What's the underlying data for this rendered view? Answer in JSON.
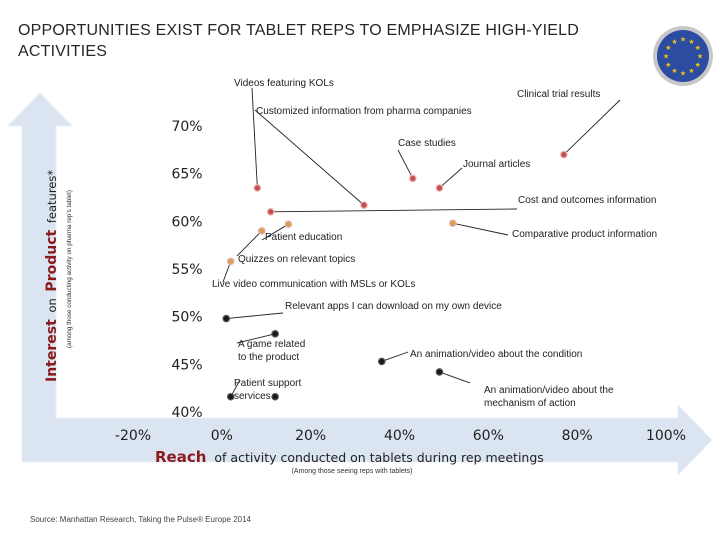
{
  "title": "OPPORTUNITIES EXIST FOR TABLET REPS TO EMPHASIZE HIGH-YIELD ACTIVITIES",
  "source": "Source: Manhattan Research, Taking the Pulse® Europe 2014",
  "logo": {
    "name": "eu-flag-logo",
    "colors": {
      "blue": "#2b4ca0",
      "star": "#f2c40f",
      "ring": "#c8c8c8"
    }
  },
  "colors": {
    "arrow": "#dae5f1",
    "red_point": "#c74b50",
    "orange_point": "#d9a050",
    "dark_point": "#1a1a1a",
    "reach_label": "#8b1a1a",
    "interest_label": "#8b1a1a"
  },
  "chart_data": {
    "type": "scatter",
    "xlabel_main": "Reach",
    "xlabel_rest": "of activity conducted on tablets during rep meetings",
    "xlabel_sub": "(Among those seeing reps with tablets)",
    "ylabel_main": "Interest",
    "ylabel_on": "on",
    "ylabel_product": "Product",
    "ylabel_rest": "features*",
    "ylabel_sub": "(among those conducting activity on pharma rep's tablet)",
    "x_ticks": [
      "-20%",
      "0%",
      "20%",
      "40%",
      "60%",
      "80%",
      "100%"
    ],
    "y_ticks": [
      "70%",
      "65%",
      "60%",
      "55%",
      "50%",
      "45%",
      "40%"
    ],
    "xlim": [
      -20,
      100
    ],
    "ylim": [
      40,
      70
    ],
    "points": [
      {
        "label": "Videos featuring KOLs",
        "x": 8,
        "y": 63.5,
        "color": "red"
      },
      {
        "label": "Clinical trial results",
        "x": 77,
        "y": 67,
        "color": "red"
      },
      {
        "label": "Customized information from pharma companies",
        "x": 32,
        "y": 61.7,
        "color": "red"
      },
      {
        "label": "Case studies",
        "x": 43,
        "y": 64.5,
        "color": "red"
      },
      {
        "label": "Journal articles",
        "x": 49,
        "y": 63.5,
        "color": "red"
      },
      {
        "label": "Cost and outcomes information",
        "x": 11,
        "y": 61,
        "color": "red"
      },
      {
        "label": "Comparative product information",
        "x": 52,
        "y": 59.8,
        "color": "orange"
      },
      {
        "label": "Patient education",
        "x": 15,
        "y": 59.7,
        "color": "orange"
      },
      {
        "label": "Quizzes on relevant topics",
        "x": 9,
        "y": 59,
        "color": "orange"
      },
      {
        "label": "Live video communication with MSLs or KOLs",
        "x": 2,
        "y": 55.8,
        "color": "orange"
      },
      {
        "label": "Relevant apps I can download on my own device",
        "x": 1,
        "y": 49.8,
        "color": "dark"
      },
      {
        "label": "A game related to the product",
        "x": 12,
        "y": 48.2,
        "color": "dark"
      },
      {
        "label": "An animation/video about the condition",
        "x": 36,
        "y": 45.3,
        "color": "dark"
      },
      {
        "label": "Patient support services",
        "x": 2,
        "y": 41.6,
        "color": "dark"
      },
      {
        "label": "An animation/video about the mechanism of action",
        "x": 49,
        "y": 44.2,
        "color": "dark"
      },
      {
        "label": "Patient support services (second)",
        "x": 12,
        "y": 41.6,
        "color": "dark"
      }
    ]
  }
}
